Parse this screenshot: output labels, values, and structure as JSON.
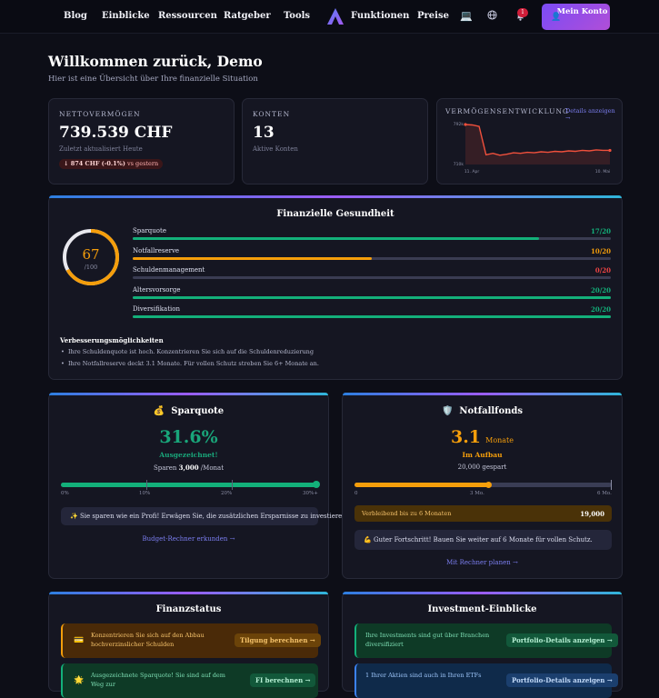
{
  "nav": {
    "links": [
      "Blog",
      "Einblicke",
      "Ressourcen",
      "Ratgeber",
      "Tools"
    ],
    "features": "Funktionen",
    "pricing": "Preise",
    "notif_count": "1",
    "account": "Mein Konto"
  },
  "header": {
    "title": "Willkommen zurück, Demo",
    "subtitle": "Hier ist eine Übersicht über Ihre finanzielle Situation"
  },
  "networth": {
    "label": "NETTOVERMÖGEN",
    "value": "739.539 CHF",
    "updated": "Zuletzt aktualisiert Heute",
    "change_value": "↓ 874 CHF",
    "change_pct": "(-0.1%)",
    "change_suffix": "vs gestern",
    "color": "#f25c5c"
  },
  "accounts": {
    "label": "KONTEN",
    "value": "13",
    "sub": "Aktive Konten"
  },
  "chart_card": {
    "label": "VERMÖGENSENTWICKLUNG",
    "link": "Details anzeigen →"
  },
  "chart_data": {
    "type": "line",
    "title": "",
    "x_ticks": [
      "11. Apr",
      "10. Mai"
    ],
    "y_ticks": [
      "792k",
      "710k"
    ],
    "ylim": [
      700,
      800
    ],
    "series": [
      {
        "values": [
          792,
          791,
          788,
          730,
          733,
          729,
          731,
          734,
          733,
          735,
          734,
          736,
          735,
          737,
          736,
          738,
          737,
          739,
          738,
          740,
          739,
          739
        ]
      }
    ],
    "color": "#f0503c"
  },
  "health": {
    "title": "Finanzielle Gesundheit",
    "score": "67",
    "score_max": "/100",
    "score_value": 67,
    "rows": [
      {
        "label": "Sparquote",
        "value": "17/20",
        "fraction": 0.85,
        "color": "#13b07a"
      },
      {
        "label": "Notfallreserve",
        "value": "10/20",
        "fraction": 0.5,
        "color": "#f59e0b"
      },
      {
        "label": "Schuldenmanagement",
        "value": "0/20",
        "fraction": 0,
        "color": "#ef4444"
      },
      {
        "label": "Altersvorsorge",
        "value": "20/20",
        "fraction": 1,
        "color": "#13b07a"
      },
      {
        "label": "Diversifikation",
        "value": "20/20",
        "fraction": 1,
        "color": "#13b07a"
      }
    ],
    "improve_title": "Verbesserungsmöglichkeiten",
    "improve": [
      "Ihre Schuldenquote ist hoch. Konzentrieren Sie sich auf die Schuldenreduzierung",
      "Ihre Notfallreserve deckt 3.1 Monate. Für vollen Schutz streben Sie 6+ Monate an."
    ]
  },
  "savings": {
    "icon": "💰",
    "title": "Sparquote",
    "value": "31.6%",
    "status": "Ausgezeichnet!",
    "sparen_pre": "Sparen",
    "sparen_amt": "3,000",
    "sparen_post": "/Monat",
    "ticks": [
      "0%",
      "10%",
      "20%",
      "30%+"
    ],
    "fraction": 1,
    "tip": "✨ Sie sparen wie ein Profi! Erwägen Sie, die zusätzlichen Ersparnisse zu investieren.",
    "link": "Budget-Rechner erkunden →"
  },
  "emergency": {
    "icon": "🛡️",
    "title": "Notfallfonds",
    "value": "3.1",
    "unit": "Monate",
    "status": "Im Aufbau",
    "saved": "20,000 gespart",
    "ticks": [
      "0",
      "3 Mo.",
      "6 Mo."
    ],
    "fraction": 0.52,
    "remain_label": "Verbleibend bis zu 6 Monaten",
    "remain_value": "19,000",
    "tip": "💪 Guter Fortschritt! Bauen Sie weiter auf 6 Monate für vollen Schutz.",
    "link": "Mit Rechner planen →"
  },
  "finance": {
    "title": "Finanzstatus",
    "tips": [
      {
        "icon": "💳",
        "text": "Konzentrieren Sie sich auf den Abbau hochverzinslicher Schulden",
        "button": "Tilgung berechnen →"
      },
      {
        "icon": "🌟",
        "text": "Ausgezeichnete Sparquote! Sie sind auf dem Weg zur",
        "button": "FI berechnen →"
      }
    ]
  },
  "invest": {
    "title": "Investment-Einblicke",
    "tips": [
      {
        "text": "Ihre Investments sind gut über Branchen diversifiziert",
        "button": "Portfolio-Details anzeigen →"
      },
      {
        "text": "1 Ihrer Aktien sind auch in Ihren ETFs",
        "button": "Portfolio-Details anzeigen →"
      }
    ]
  }
}
